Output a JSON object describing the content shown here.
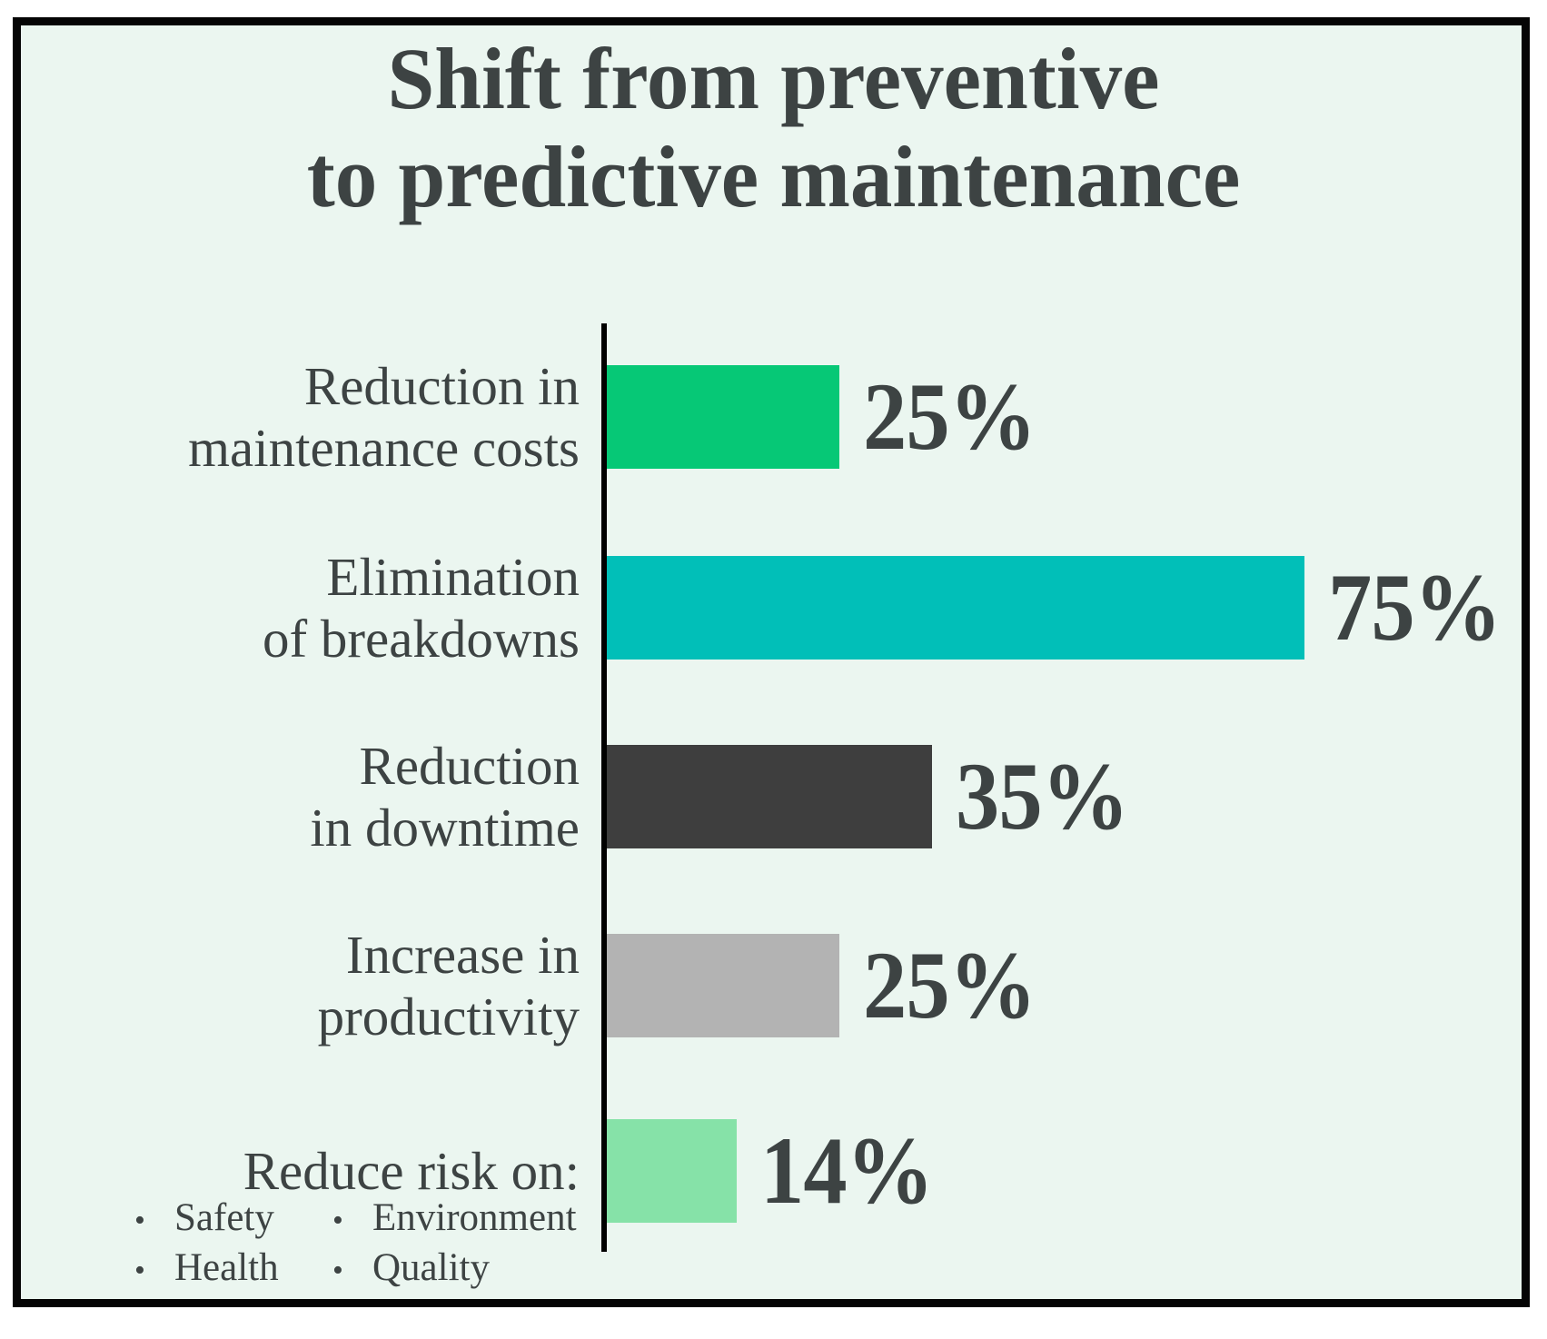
{
  "title": {
    "line1": "Shift from preventive",
    "line2": "to predictive maintenance"
  },
  "colors": {
    "page_background": "#ffffff",
    "slide_background": "#ebf6f0",
    "frame_border": "#050505",
    "text": "#3d4343",
    "axis": "#000000",
    "bar_green": "#06c876",
    "bar_teal": "#01bfb8",
    "bar_dark": "#3e3e3e",
    "bar_gray": "#b3b3b3",
    "bar_light_green": "#86e2a8"
  },
  "chart_data": {
    "type": "bar",
    "orientation": "horizontal",
    "title": "Shift from preventive to predictive maintenance",
    "categories": [
      "Reduction in maintenance costs",
      "Elimination of breakdowns",
      "Reduction in downtime",
      "Increase in productivity",
      "Reduce risk on:"
    ],
    "category_lines": [
      [
        "Reduction in",
        "maintenance costs"
      ],
      [
        "Elimination",
        "of breakdowns"
      ],
      [
        "Reduction",
        "in downtime"
      ],
      [
        "Increase in",
        "productivity"
      ],
      [
        "Reduce risk on:"
      ]
    ],
    "values": [
      25,
      75,
      35,
      25,
      14
    ],
    "value_labels": [
      "25%",
      "75%",
      "35%",
      "25%",
      "14%"
    ],
    "bar_colors": [
      "#06c876",
      "#01bfb8",
      "#3e3e3e",
      "#b3b3b3",
      "#86e2a8"
    ],
    "xlim": [
      0,
      100
    ],
    "grid": false,
    "legend": false,
    "risk_bullets": [
      "Safety",
      "Health",
      "Environment",
      "Quality"
    ]
  }
}
